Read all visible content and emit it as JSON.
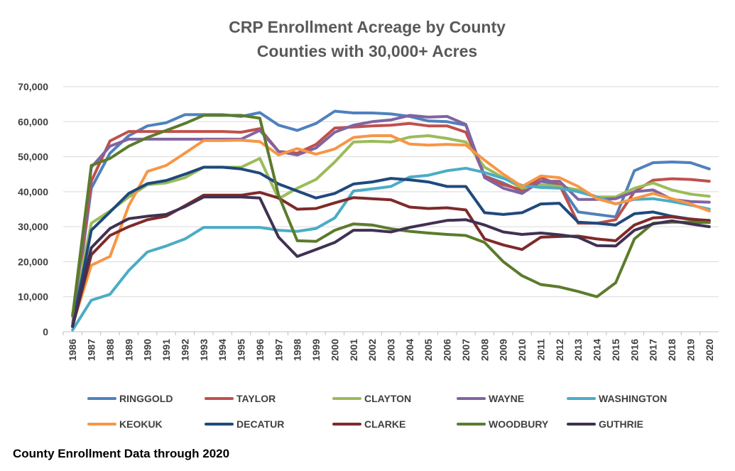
{
  "chart_data": {
    "type": "line",
    "title": "CRP Enrollment Acreage by County",
    "subtitle": "Counties with 30,000+ Acres",
    "xlabel": "",
    "ylabel": "",
    "ylim": [
      0,
      70000
    ],
    "y_ticks": [
      0,
      10000,
      20000,
      30000,
      40000,
      50000,
      60000,
      70000
    ],
    "y_tick_labels": [
      "0",
      "10,000",
      "20,000",
      "30,000",
      "40,000",
      "50,000",
      "60,000",
      "70,000"
    ],
    "grid": true,
    "legend_position": "bottom",
    "x": [
      "1986",
      "1987",
      "1988",
      "1989",
      "1990",
      "1991",
      "1992",
      "1993",
      "1994",
      "1995",
      "1996",
      "1997",
      "1998",
      "1999",
      "2000",
      "2001",
      "2002",
      "2003",
      "2004",
      "2005",
      "2006",
      "2007",
      "2008",
      "2009",
      "2010",
      "2011",
      "2012",
      "2013",
      "2014",
      "2015",
      "2016",
      "2017",
      "2018",
      "2019",
      "2020"
    ],
    "series": [
      {
        "name": "RINGGOLD",
        "color": "#4f81bd",
        "values": [
          1500,
          41000,
          51000,
          56000,
          58800,
          59700,
          62000,
          62000,
          62000,
          61500,
          62600,
          59000,
          57500,
          59500,
          63000,
          62500,
          62500,
          62200,
          61500,
          60200,
          60000,
          59000,
          44500,
          42500,
          40000,
          43000,
          42000,
          34200,
          33500,
          32800,
          46000,
          48300,
          48500,
          48300,
          46500
        ]
      },
      {
        "name": "TAYLOR",
        "color": "#c0504d",
        "values": [
          1500,
          43000,
          54500,
          57200,
          57200,
          57200,
          57200,
          57200,
          57200,
          57000,
          58000,
          51500,
          51000,
          53500,
          58200,
          58500,
          58800,
          59000,
          59500,
          58800,
          58800,
          57000,
          44500,
          42000,
          40500,
          44000,
          42000,
          31000,
          31000,
          32000,
          40000,
          43300,
          43700,
          43500,
          43000
        ]
      },
      {
        "name": "CLAYTON",
        "color": "#9bbb59",
        "values": [
          5000,
          31000,
          34500,
          38500,
          42000,
          42500,
          44000,
          47000,
          47000,
          47000,
          49500,
          38000,
          41000,
          43500,
          48500,
          54200,
          54400,
          54200,
          55600,
          56000,
          55200,
          54200,
          47000,
          44000,
          41000,
          42000,
          41500,
          40500,
          38500,
          38500,
          41000,
          42500,
          40500,
          39300,
          38700
        ]
      },
      {
        "name": "WAYNE",
        "color": "#8064a2",
        "values": [
          2000,
          47000,
          53000,
          55000,
          55000,
          55000,
          55000,
          55000,
          55000,
          55000,
          57500,
          51500,
          50500,
          52500,
          57000,
          59000,
          60000,
          60500,
          61800,
          61300,
          61500,
          59200,
          44000,
          41000,
          39500,
          43000,
          43000,
          37800,
          37800,
          38000,
          40000,
          40500,
          37800,
          37200,
          37000
        ]
      },
      {
        "name": "WASHINGTON",
        "color": "#4bacc6",
        "values": [
          500,
          9000,
          10700,
          17500,
          22800,
          24500,
          26500,
          29800,
          29800,
          29800,
          29800,
          29000,
          28700,
          29500,
          32500,
          40200,
          40800,
          41500,
          44200,
          44700,
          46000,
          46700,
          45500,
          43800,
          41800,
          41200,
          41000,
          40000,
          38500,
          36500,
          37800,
          38000,
          37200,
          36200,
          35000
        ]
      },
      {
        "name": "KEOKUK",
        "color": "#f79646",
        "values": [
          2000,
          19000,
          21500,
          36000,
          45800,
          47500,
          51000,
          54600,
          54600,
          54700,
          54300,
          50500,
          52300,
          50700,
          52200,
          55500,
          56000,
          56000,
          53600,
          53300,
          53500,
          53300,
          49000,
          45000,
          41500,
          44500,
          44000,
          41500,
          38000,
          36500,
          38000,
          39500,
          38000,
          36500,
          34500
        ]
      },
      {
        "name": "DECATUR",
        "color": "#1f497d",
        "values": [
          1500,
          29000,
          34200,
          39500,
          42300,
          43200,
          45000,
          47000,
          47000,
          46500,
          45300,
          42200,
          40200,
          38200,
          39500,
          42200,
          42800,
          43800,
          43400,
          42800,
          41500,
          41500,
          34000,
          33500,
          34000,
          36500,
          36700,
          31300,
          31000,
          30500,
          33700,
          34200,
          33000,
          32200,
          31700
        ]
      },
      {
        "name": "CLARKE",
        "color": "#7f2a2a",
        "values": [
          1500,
          22000,
          27500,
          30000,
          32000,
          33000,
          36000,
          39000,
          39000,
          39000,
          39800,
          38200,
          35000,
          35200,
          36800,
          38300,
          38000,
          37700,
          35600,
          35200,
          35400,
          34800,
          26500,
          24800,
          23500,
          27000,
          27200,
          27300,
          26500,
          26000,
          30500,
          32500,
          32800,
          32100,
          31800
        ]
      },
      {
        "name": "WOODBURY",
        "color": "#5b7b2b",
        "values": [
          4500,
          47500,
          49500,
          53000,
          55500,
          57500,
          59500,
          61800,
          61800,
          61800,
          61000,
          39000,
          26000,
          25800,
          29000,
          30800,
          30500,
          29400,
          28700,
          28200,
          27800,
          27500,
          25500,
          20000,
          16000,
          13500,
          12800,
          11500,
          10000,
          14000,
          26500,
          31000,
          31300,
          31300,
          31200
        ]
      },
      {
        "name": "GUTHRIE",
        "color": "#403152",
        "values": [
          1500,
          24000,
          29500,
          32300,
          33000,
          33500,
          35700,
          38500,
          38500,
          38500,
          38200,
          27000,
          21500,
          23500,
          25500,
          29000,
          29000,
          28500,
          29800,
          30800,
          31800,
          32000,
          30500,
          28500,
          27800,
          28200,
          27700,
          27000,
          24600,
          24500,
          29000,
          30800,
          31700,
          30800,
          30000
        ]
      }
    ]
  },
  "footnote": "County Enrollment Data through 2020"
}
